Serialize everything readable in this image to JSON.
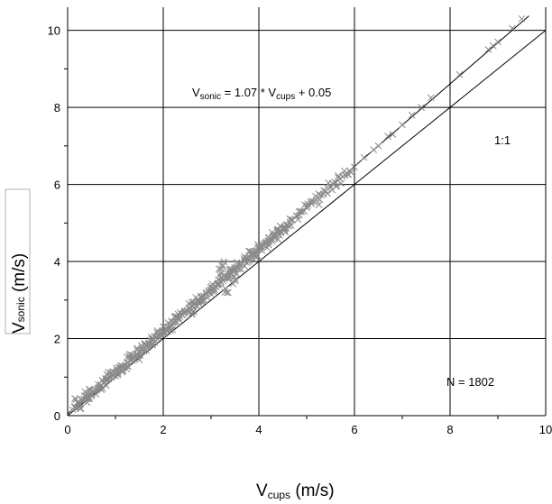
{
  "chart_data": {
    "type": "scatter",
    "title": "",
    "xlabel": {
      "main": "V",
      "sub": "cups",
      "unit": " (m/s)"
    },
    "ylabel": {
      "main": "V",
      "sub": "sonic",
      "unit": " (m/s)"
    },
    "xlim": [
      0,
      10
    ],
    "ylim": [
      0,
      10.6
    ],
    "xticks": [
      "0",
      "2",
      "4",
      "6",
      "8",
      "10"
    ],
    "yticks": [
      "0",
      "2",
      "4",
      "6",
      "8",
      "10"
    ],
    "grid": true,
    "marker": "x",
    "fit": {
      "slope": 1.07,
      "intercept": 0.05
    },
    "reference_line": {
      "slope": 1,
      "intercept": 0,
      "label": "1:1"
    },
    "annotations": {
      "equation": {
        "v1": "V",
        "s1": "sonic",
        "mid": " = 1.07 * V",
        "s2": "cups",
        "end": " + 0.05"
      },
      "identity": "1:1",
      "count": "N = 1802"
    },
    "series": [
      {
        "values": [
          [
            0.15,
            0.22
          ],
          [
            0.2,
            0.35
          ],
          [
            0.25,
            0.28
          ],
          [
            0.3,
            0.4
          ],
          [
            0.35,
            0.42
          ],
          [
            0.4,
            0.5
          ],
          [
            0.45,
            0.48
          ],
          [
            0.5,
            0.58
          ],
          [
            0.55,
            0.62
          ],
          [
            0.6,
            0.66
          ],
          [
            0.65,
            0.72
          ],
          [
            0.7,
            0.8
          ],
          [
            0.75,
            0.85
          ],
          [
            0.8,
            0.9
          ],
          [
            0.85,
            0.95
          ],
          [
            0.9,
            1.0
          ],
          [
            0.95,
            1.05
          ],
          [
            1.0,
            1.12
          ],
          [
            1.05,
            1.15
          ],
          [
            1.1,
            1.22
          ],
          [
            1.15,
            1.28
          ],
          [
            1.2,
            1.3
          ],
          [
            1.25,
            1.38
          ],
          [
            1.3,
            1.45
          ],
          [
            1.35,
            1.5
          ],
          [
            1.4,
            1.55
          ],
          [
            1.45,
            1.6
          ],
          [
            1.5,
            1.65
          ],
          [
            1.55,
            1.7
          ],
          [
            1.6,
            1.75
          ],
          [
            1.65,
            1.8
          ],
          [
            1.7,
            1.88
          ],
          [
            1.75,
            1.92
          ],
          [
            1.8,
            1.98
          ],
          [
            1.85,
            2.02
          ],
          [
            1.9,
            2.1
          ],
          [
            1.95,
            2.15
          ],
          [
            2.0,
            2.2
          ],
          [
            2.05,
            2.25
          ],
          [
            2.1,
            2.3
          ],
          [
            2.15,
            2.35
          ],
          [
            2.2,
            2.42
          ],
          [
            2.25,
            2.45
          ],
          [
            2.3,
            2.52
          ],
          [
            2.35,
            2.58
          ],
          [
            2.4,
            2.62
          ],
          [
            2.45,
            2.7
          ],
          [
            2.5,
            2.72
          ],
          [
            2.55,
            2.8
          ],
          [
            2.6,
            2.85
          ],
          [
            2.65,
            2.9
          ],
          [
            2.7,
            2.95
          ],
          [
            2.75,
            3.0
          ],
          [
            2.8,
            3.05
          ],
          [
            2.85,
            3.1
          ],
          [
            2.9,
            3.15
          ],
          [
            2.95,
            3.2
          ],
          [
            3.0,
            3.25
          ],
          [
            3.05,
            3.3
          ],
          [
            3.1,
            3.35
          ],
          [
            3.15,
            3.42
          ],
          [
            3.2,
            3.48
          ],
          [
            3.25,
            3.5
          ],
          [
            3.3,
            3.58
          ],
          [
            3.35,
            3.62
          ],
          [
            3.4,
            3.7
          ],
          [
            3.45,
            3.75
          ],
          [
            3.5,
            3.8
          ],
          [
            3.55,
            3.85
          ],
          [
            3.6,
            3.9
          ],
          [
            3.65,
            3.95
          ],
          [
            3.7,
            4.0
          ],
          [
            3.75,
            4.05
          ],
          [
            3.8,
            4.1
          ],
          [
            3.85,
            4.15
          ],
          [
            3.9,
            4.2
          ],
          [
            3.95,
            4.28
          ],
          [
            4.0,
            4.32
          ],
          [
            4.05,
            4.38
          ],
          [
            4.1,
            4.42
          ],
          [
            4.15,
            4.48
          ],
          [
            4.2,
            4.55
          ],
          [
            4.25,
            4.58
          ],
          [
            4.3,
            4.65
          ],
          [
            4.35,
            4.7
          ],
          [
            4.4,
            4.75
          ],
          [
            4.45,
            4.8
          ],
          [
            4.5,
            4.85
          ],
          [
            4.55,
            4.9
          ],
          [
            4.6,
            4.95
          ],
          [
            4.65,
            5.02
          ],
          [
            4.7,
            5.08
          ],
          [
            4.8,
            5.18
          ],
          [
            4.9,
            5.3
          ],
          [
            5.0,
            5.4
          ],
          [
            5.1,
            5.5
          ],
          [
            5.2,
            5.6
          ],
          [
            5.3,
            5.72
          ],
          [
            5.4,
            5.82
          ],
          [
            5.5,
            5.95
          ],
          [
            5.6,
            6.05
          ],
          [
            5.7,
            6.15
          ],
          [
            5.8,
            6.25
          ],
          [
            5.9,
            6.35
          ],
          [
            6.0,
            6.45
          ],
          [
            6.2,
            6.7
          ],
          [
            6.4,
            6.9
          ],
          [
            6.5,
            7.0
          ],
          [
            6.7,
            7.25
          ],
          [
            6.8,
            7.3
          ],
          [
            7.0,
            7.55
          ],
          [
            7.2,
            7.8
          ],
          [
            7.4,
            8.0
          ],
          [
            7.6,
            8.25
          ],
          [
            8.2,
            8.85
          ],
          [
            8.8,
            9.5
          ],
          [
            8.9,
            9.6
          ],
          [
            9.0,
            9.7
          ],
          [
            9.3,
            10.05
          ],
          [
            9.5,
            10.3
          ],
          [
            3.2,
            3.7
          ],
          [
            3.25,
            3.9
          ],
          [
            3.3,
            3.3
          ],
          [
            3.5,
            3.5
          ],
          [
            2.6,
            2.65
          ],
          [
            1.5,
            1.45
          ]
        ]
      }
    ]
  }
}
